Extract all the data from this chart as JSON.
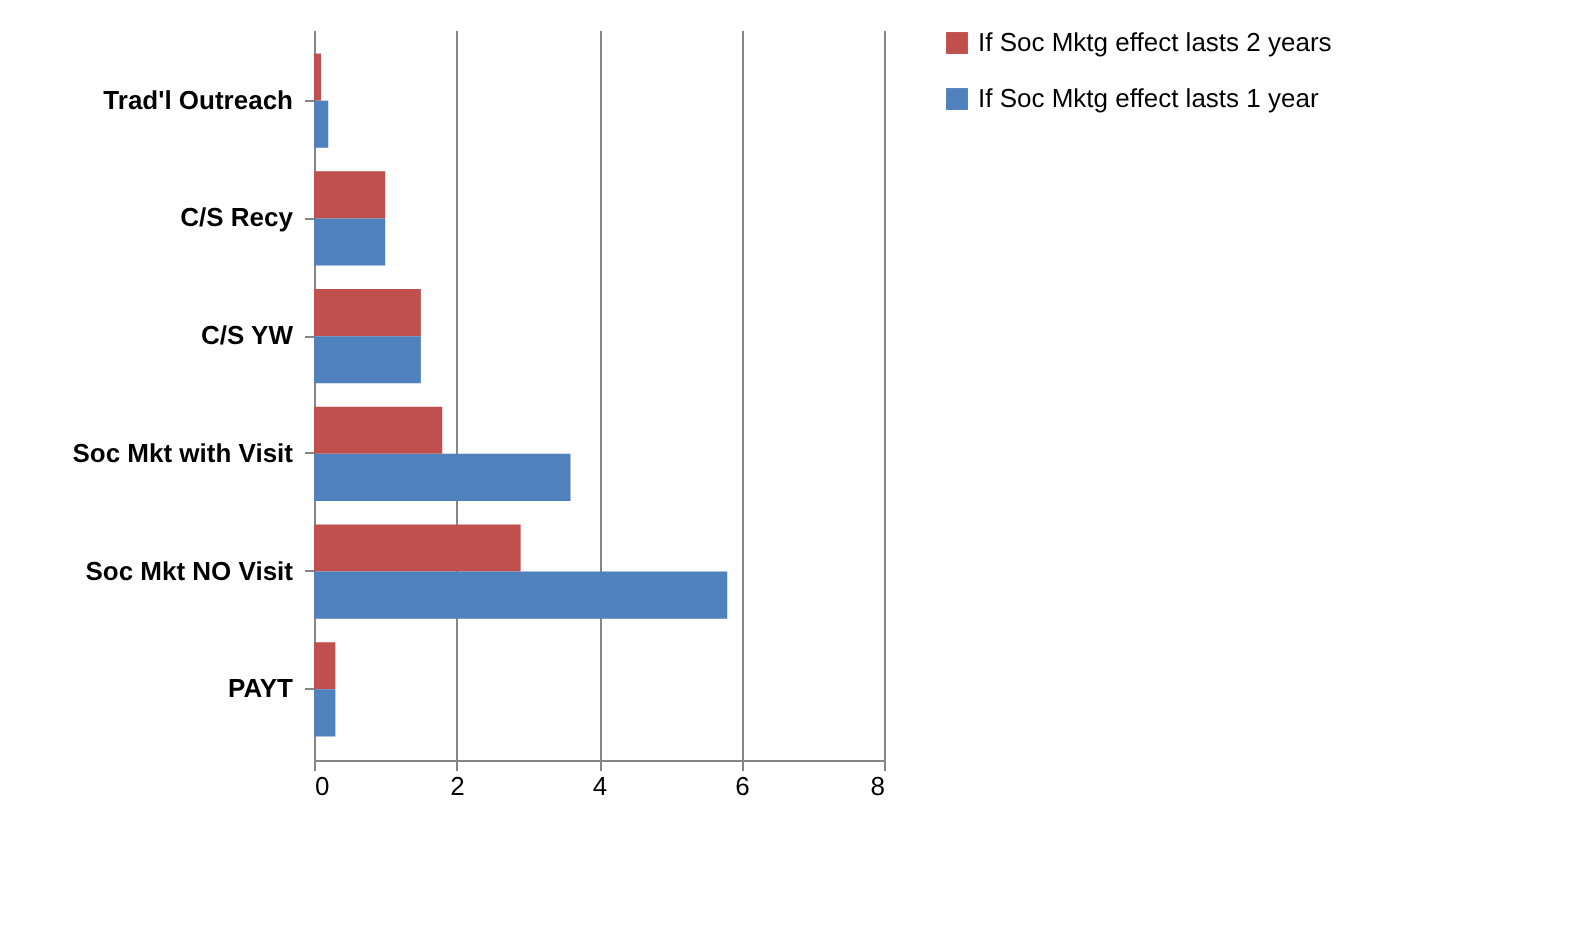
{
  "chart_data": {
    "type": "bar",
    "orientation": "horizontal",
    "categories": [
      "Trad'l Outreach",
      "C/S Recy",
      "C/S YW",
      "Soc Mkt with Visit",
      "Soc Mkt NO Visit",
      "PAYT"
    ],
    "series": [
      {
        "name": "If Soc Mktg effect lasts 2 years",
        "color": "#c0504d",
        "values": [
          0.1,
          1.0,
          1.5,
          1.8,
          2.9,
          0.3
        ]
      },
      {
        "name": "If Soc Mktg effect lasts 1 year",
        "color": "#4f81bd",
        "values": [
          0.2,
          1.0,
          1.5,
          3.6,
          5.8,
          0.3
        ]
      }
    ],
    "xlim": [
      0,
      8
    ],
    "xticks": [
      0,
      2,
      4,
      6,
      8
    ],
    "grid": "x",
    "legend": "right"
  }
}
